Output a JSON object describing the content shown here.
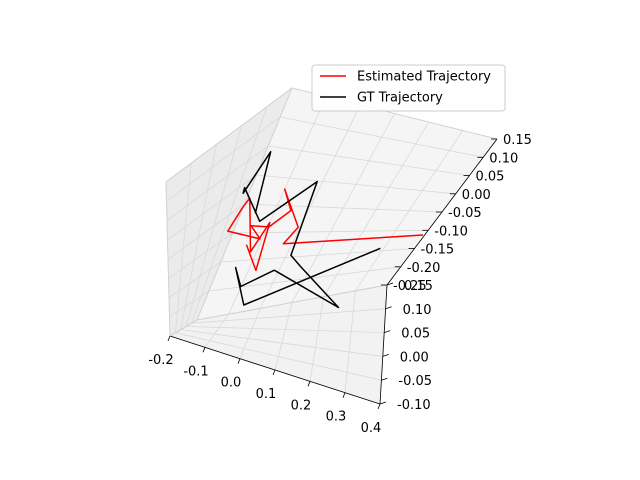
{
  "chart_data": {
    "type": "line",
    "projection": "3d",
    "legend_position": "top-right",
    "grid": true,
    "colors": {
      "estimated": "#ff0000",
      "gt": "#000000",
      "pane": "#f2f2f2",
      "grid": "#d9d9d9"
    },
    "axes": {
      "x": {
        "range": [
          -0.2,
          0.4
        ],
        "ticks": [
          "-0.2",
          "-0.1",
          "0.0",
          "0.1",
          "0.2",
          "0.3",
          "0.4"
        ]
      },
      "y": {
        "range": [
          -0.1,
          0.15
        ],
        "ticks": [
          "-0.10",
          "-0.05",
          "0.00",
          "0.05",
          "0.10",
          "0.15"
        ]
      },
      "z": {
        "range": [
          -0.25,
          0.15
        ],
        "ticks": [
          "-0.25",
          "-0.20",
          "-0.15",
          "-0.10",
          "-0.05",
          "0.00",
          "0.05",
          "0.10",
          "0.15"
        ]
      }
    },
    "series": [
      {
        "name": "Estimated Trajectory",
        "color": "#ff0000",
        "points": [
          [
            -0.07,
            0.01,
            -0.05
          ],
          [
            -0.04,
            0.04,
            -0.12
          ],
          [
            -0.07,
            0.09,
            -0.05
          ],
          [
            -0.06,
            0.02,
            -0.07
          ],
          [
            -0.13,
            0.06,
            0.01
          ],
          [
            -0.12,
            0.03,
            0.01
          ],
          [
            -0.13,
            0.01,
            -0.03
          ],
          [
            -0.06,
            0.05,
            -0.06
          ],
          [
            -0.09,
            0.04,
            -0.03
          ],
          [
            -0.02,
            0.01,
            0.0
          ],
          [
            0.0,
            0.05,
            0.01
          ],
          [
            -0.02,
            0.03,
            0.07
          ],
          [
            0.03,
            0.06,
            -0.03
          ],
          [
            0.05,
            -0.02,
            0.0
          ],
          [
            0.38,
            0.05,
            0.02
          ]
        ]
      },
      {
        "name": "GT Trajectory",
        "color": "#000000",
        "points": [
          [
            -0.05,
            -0.01,
            0.04
          ],
          [
            -0.13,
            0.08,
            0.09
          ],
          [
            -0.16,
            0.07,
            0.01
          ],
          [
            -0.12,
            0.02,
            0.06
          ],
          [
            -0.1,
            0.09,
            -0.05
          ],
          [
            0.0,
            0.12,
            0.02
          ],
          [
            0.09,
            -0.04,
            0.0
          ],
          [
            0.12,
            -0.04,
            -0.02
          ],
          [
            0.27,
            -0.09,
            -0.03
          ],
          [
            0.02,
            0.02,
            -0.1
          ],
          [
            -0.05,
            -0.01,
            -0.13
          ],
          [
            -0.1,
            0.04,
            -0.12
          ],
          [
            0.0,
            -0.08,
            -0.12
          ],
          [
            0.3,
            0.0,
            0.03
          ]
        ]
      }
    ]
  }
}
